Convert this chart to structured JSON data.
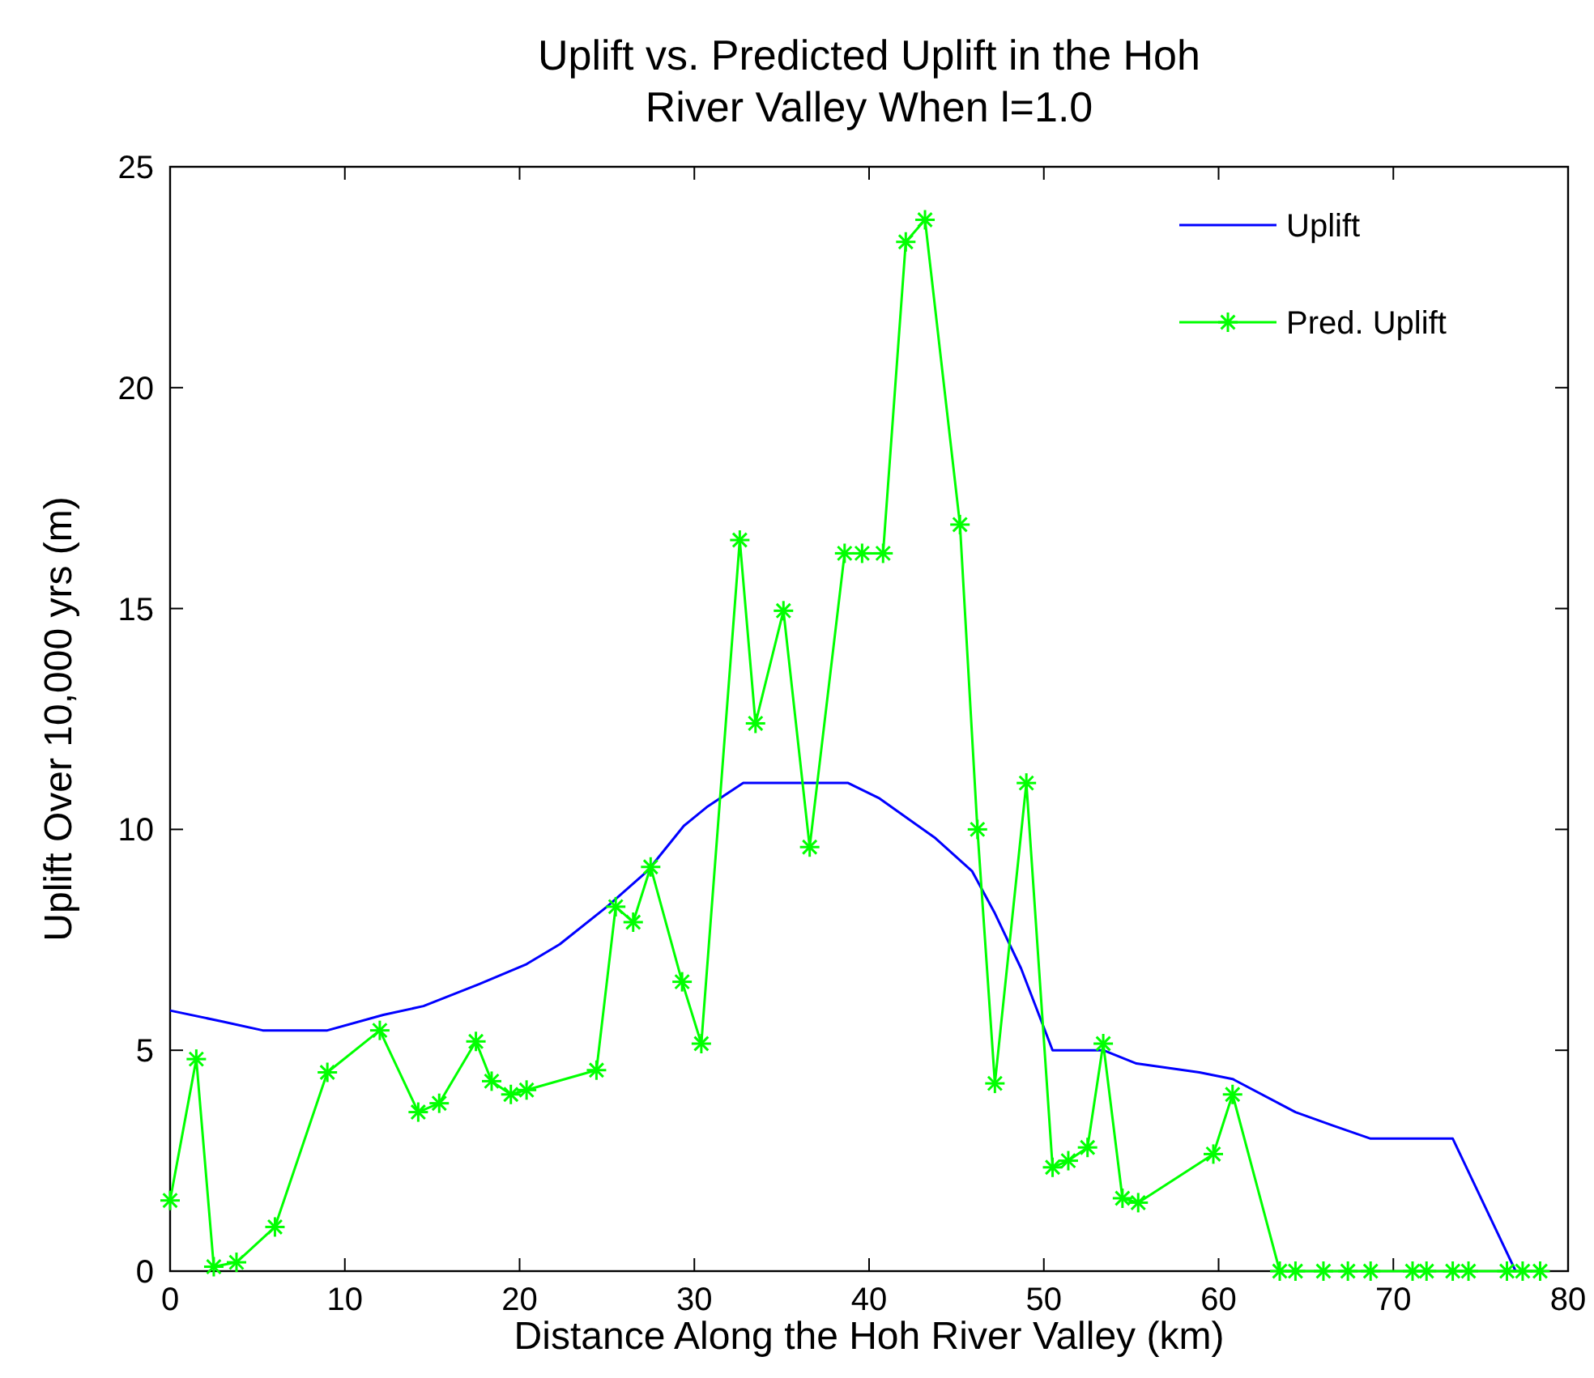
{
  "chart_data": {
    "type": "line",
    "title": "Uplift vs. Predicted Uplift in the Hoh River Valley When l=1.0",
    "xlabel": "Distance Along the Hoh River Valley (km)",
    "ylabel": "Uplift Over 10,000 yrs (m)",
    "xlim": [
      0,
      80
    ],
    "xticks": [
      0,
      10,
      20,
      30,
      40,
      50,
      60,
      70,
      80
    ],
    "ylim": [
      0,
      25
    ],
    "yticks": [
      0,
      5,
      10,
      15,
      20,
      25
    ],
    "grid": false,
    "legend": "top right",
    "series": [
      {
        "name": "Uplift",
        "color": "#0000ff",
        "marker": "none",
        "x": [
          0,
          3,
          5.3,
          9,
          12.2,
          14.5,
          17.7,
          20.4,
          22.3,
          25,
          27.3,
          29.4,
          30.7,
          32.8,
          38.8,
          40.6,
          43.8,
          45.9,
          47.2,
          48.7,
          50.5,
          53.4,
          55.3,
          58.9,
          60.8,
          64.4,
          66.5,
          68.7,
          69.9,
          73.4,
          77
        ],
        "values": [
          5.9,
          5.65,
          5.45,
          5.45,
          5.8,
          6.0,
          6.5,
          6.95,
          7.4,
          8.25,
          9.05,
          10.08,
          10.5,
          11.05,
          11.05,
          10.7,
          9.8,
          9.05,
          8.1,
          6.85,
          5.0,
          5.0,
          4.7,
          4.5,
          4.35,
          3.6,
          3.3,
          3.0,
          3.0,
          3.0,
          0
        ]
      },
      {
        "name": "Pred. Uplift",
        "color": "#00ff00",
        "marker": "cross",
        "x": [
          0,
          1.5,
          2.5,
          3.8,
          6,
          9,
          12,
          14.2,
          15.4,
          17.5,
          18.4,
          19.5,
          20.4,
          24.4,
          25.5,
          26.5,
          27.5,
          29.3,
          30.4,
          32.6,
          33.5,
          35.1,
          36.6,
          38.6,
          39.6,
          40.8,
          42.1,
          43.2,
          45.2,
          46.2,
          47.2,
          49,
          50.5,
          51.4,
          52.5,
          53.4,
          54.5,
          55.4,
          59.7,
          60.8,
          63.5,
          64.4,
          66,
          67.4,
          68.7,
          71.1,
          71.9,
          73.4,
          74.3,
          76.5,
          77.4,
          78.4
        ],
        "values": [
          1.6,
          4.8,
          0.1,
          0.2,
          1.0,
          4.5,
          5.45,
          3.6,
          3.8,
          5.2,
          4.3,
          4.0,
          4.1,
          4.55,
          8.25,
          7.9,
          9.15,
          6.55,
          5.15,
          16.55,
          12.4,
          14.95,
          9.6,
          16.25,
          16.25,
          16.25,
          23.3,
          23.8,
          16.9,
          10.0,
          4.25,
          11.05,
          2.35,
          2.5,
          2.8,
          5.15,
          1.65,
          1.55,
          2.65,
          4.0,
          0,
          0,
          0,
          0,
          0,
          0,
          0,
          0,
          0,
          0,
          0,
          0
        ]
      }
    ]
  }
}
